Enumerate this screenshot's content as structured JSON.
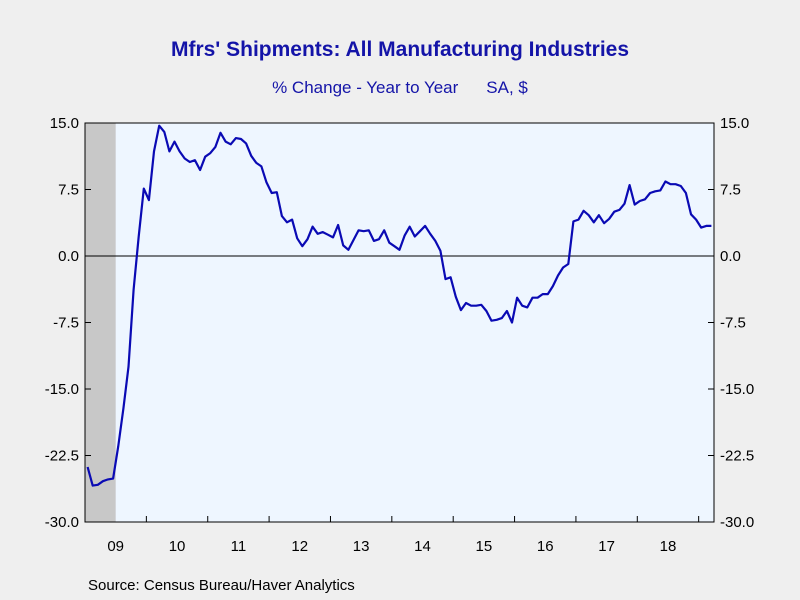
{
  "chart_data": {
    "type": "line",
    "title": "Mfrs' Shipments: All Manufacturing Industries",
    "subtitle": "% Change - Year to Year",
    "subtitle_units": "SA, $",
    "source": "Source:  Census Bureau/Haver Analytics",
    "xlabel": "",
    "ylabel": "",
    "ylim": [
      -30.0,
      15.0
    ],
    "yticks": [
      "15.0",
      "7.5",
      "0.0",
      "-7.5",
      "-15.0",
      "-22.5",
      "-30.0"
    ],
    "xtick_labels": [
      "09",
      "10",
      "11",
      "12",
      "13",
      "14",
      "15",
      "16",
      "17",
      "18"
    ],
    "recession_shading": {
      "start": "2009-01",
      "end": "2009-06",
      "color": "#c8c8c8"
    },
    "zero_line": true,
    "grid": false,
    "colors": {
      "line": "#0a0ab4",
      "plot_bg": "#eef6ff",
      "text": "#1414a8"
    },
    "series": [
      {
        "start": "2009-01",
        "frequency": "monthly",
        "values": [
          -23.8,
          -25.9,
          -25.8,
          -25.4,
          -25.2,
          -25.1,
          -21.5,
          -17.2,
          -12.5,
          -3.8,
          2.2,
          7.6,
          6.3,
          11.8,
          14.7,
          14.0,
          11.8,
          12.9,
          11.8,
          11.0,
          10.6,
          10.8,
          9.7,
          11.2,
          11.6,
          12.3,
          13.9,
          12.9,
          12.6,
          13.3,
          13.2,
          12.7,
          11.3,
          10.5,
          10.1,
          8.3,
          7.1,
          7.2,
          4.5,
          3.8,
          4.1,
          2.0,
          1.1,
          1.9,
          3.3,
          2.5,
          2.7,
          2.4,
          2.1,
          3.5,
          1.2,
          0.7,
          1.8,
          2.9,
          2.8,
          2.9,
          1.7,
          1.9,
          2.9,
          1.5,
          1.1,
          0.7,
          2.3,
          3.3,
          2.2,
          2.8,
          3.4,
          2.5,
          1.7,
          0.6,
          -2.6,
          -2.4,
          -4.6,
          -6.1,
          -5.3,
          -5.6,
          -5.6,
          -5.5,
          -6.2,
          -7.3,
          -7.2,
          -7.0,
          -6.2,
          -7.5,
          -4.7,
          -5.6,
          -5.8,
          -4.7,
          -4.7,
          -4.3,
          -4.3,
          -3.4,
          -2.2,
          -1.3,
          -0.9,
          3.9,
          4.1,
          5.1,
          4.6,
          3.8,
          4.6,
          3.7,
          4.2,
          5.0,
          5.2,
          5.9,
          8.0,
          5.8,
          6.2,
          6.4,
          7.1,
          7.3,
          7.4,
          8.4,
          8.1,
          8.1,
          7.9,
          7.1,
          4.7,
          4.1,
          3.2,
          3.4,
          3.4
        ]
      }
    ]
  }
}
